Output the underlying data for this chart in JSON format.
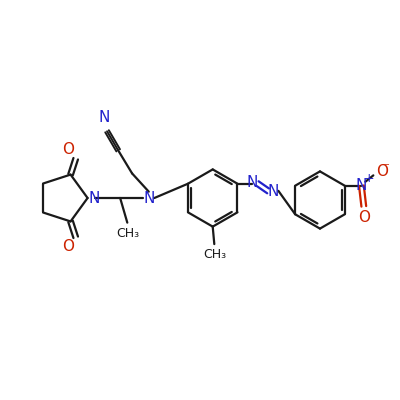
{
  "background_color": "#ffffff",
  "bond_color": "#1a1a1a",
  "blue_color": "#2222cc",
  "red_color": "#cc2200",
  "line_width": 1.6,
  "figsize": [
    4.0,
    4.0
  ],
  "dpi": 100,
  "xlim": [
    0,
    10
  ],
  "ylim": [
    0,
    10
  ]
}
